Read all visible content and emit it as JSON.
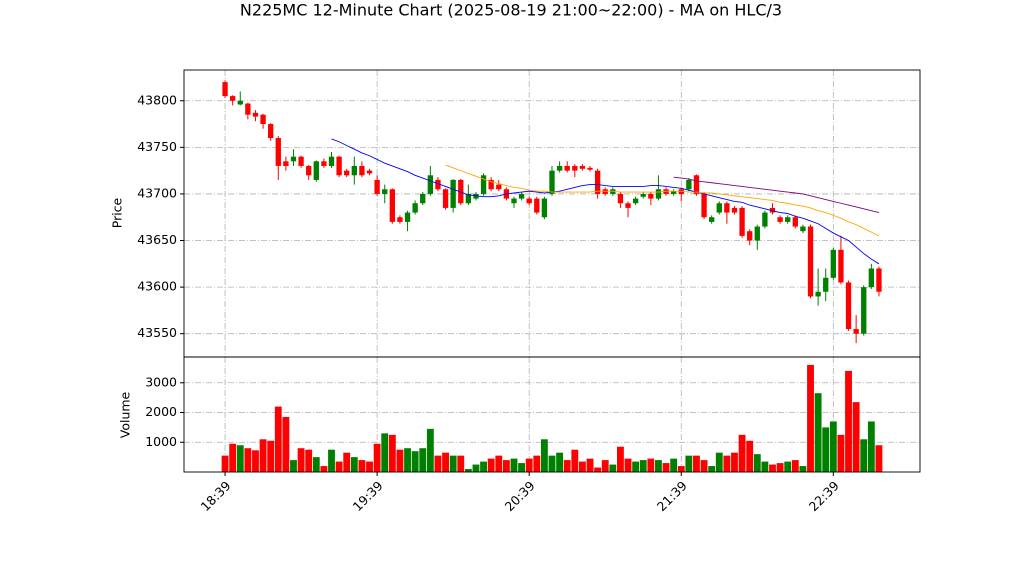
{
  "chart_data": [
    {
      "type": "candlestick",
      "title": "N225MC 12-Minute Chart (2025-08-19 21:00~22:00) - MA on HLC/3",
      "ylabel": "Price",
      "up_color": "#008000",
      "down_color": "#ff0000",
      "open": [
        43820,
        43805,
        43796,
        43797,
        43787,
        43785,
        43775,
        43760,
        43735,
        43735,
        43740,
        43730,
        43715,
        43735,
        43730,
        43740,
        43725,
        43720,
        43730,
        43725,
        43715,
        43700,
        43705,
        43675,
        43670,
        43680,
        43690,
        43700,
        43715,
        43705,
        43685,
        43715,
        43690,
        43695,
        43700,
        43715,
        43710,
        43705,
        43690,
        43695,
        43695,
        43695,
        43675,
        43700,
        43725,
        43730,
        43730,
        43730,
        43728,
        43725,
        43705,
        43700,
        43700,
        43690,
        43690,
        43697,
        43700,
        43695,
        43705,
        43700,
        43705,
        43705,
        43720,
        43700,
        43670,
        43680,
        43690,
        43685,
        43685,
        43660,
        43650,
        43665,
        43685,
        43675,
        43670,
        43675,
        43660,
        43665,
        43590,
        43595,
        43610,
        43640,
        43605,
        43555,
        43550,
        43600,
        43620
      ],
      "high": [
        43822,
        43806,
        43810,
        43798,
        43790,
        43786,
        43776,
        43762,
        43740,
        43748,
        43741,
        43731,
        43736,
        43738,
        43745,
        43741,
        43727,
        43740,
        43735,
        43727,
        43720,
        43710,
        43706,
        43677,
        43682,
        43693,
        43702,
        43730,
        43718,
        43706,
        43716,
        43716,
        43710,
        43702,
        43722,
        43718,
        43715,
        43707,
        43697,
        43702,
        43697,
        43697,
        43697,
        43730,
        43735,
        43735,
        43732,
        43732,
        43730,
        43727,
        43707,
        43707,
        43702,
        43692,
        43697,
        43702,
        43702,
        43720,
        43707,
        43705,
        43707,
        43717,
        43721,
        43702,
        43677,
        43692,
        43692,
        43687,
        43687,
        43662,
        43667,
        43682,
        43690,
        43677,
        43677,
        43677,
        43667,
        43667,
        43620,
        43620,
        43642,
        43655,
        43607,
        43570,
        43602,
        43625,
        43622
      ],
      "low": [
        43803,
        43795,
        43795,
        43780,
        43778,
        43770,
        43757,
        43715,
        43725,
        43730,
        43728,
        43715,
        43713,
        43728,
        43728,
        43718,
        43718,
        43710,
        43718,
        43720,
        43698,
        43690,
        43668,
        43668,
        43660,
        43678,
        43688,
        43698,
        43703,
        43683,
        43680,
        43688,
        43688,
        43693,
        43698,
        43703,
        43703,
        43693,
        43685,
        43693,
        43688,
        43678,
        43673,
        43698,
        43723,
        43723,
        43718,
        43725,
        43724,
        43695,
        43698,
        43698,
        43685,
        43675,
        43688,
        43695,
        43688,
        43693,
        43698,
        43698,
        43692,
        43703,
        43698,
        43673,
        43668,
        43678,
        43668,
        43678,
        43653,
        43645,
        43640,
        43663,
        43678,
        43668,
        43668,
        43663,
        43658,
        43588,
        43580,
        43585,
        43608,
        43603,
        43553,
        43540,
        43548,
        43598,
        43590
      ],
      "close": [
        43805,
        43800,
        43800,
        43785,
        43783,
        43775,
        43760,
        43730,
        43730,
        43740,
        43730,
        43720,
        43735,
        43730,
        43740,
        43720,
        43720,
        43730,
        43720,
        43722,
        43700,
        43705,
        43670,
        43670,
        43680,
        43690,
        43700,
        43720,
        43705,
        43685,
        43715,
        43690,
        43700,
        43700,
        43720,
        43705,
        43705,
        43695,
        43695,
        43700,
        43690,
        43680,
        43695,
        43725,
        43730,
        43725,
        43725,
        43727,
        43726,
        43700,
        43700,
        43705,
        43690,
        43685,
        43695,
        43700,
        43695,
        43705,
        43700,
        43703,
        43700,
        43715,
        43700,
        43675,
        43675,
        43690,
        43680,
        43680,
        43655,
        43650,
        43665,
        43680,
        43680,
        43670,
        43675,
        43665,
        43665,
        43590,
        43595,
        43610,
        43640,
        43605,
        43555,
        43550,
        43600,
        43620,
        43595
      ],
      "series": [
        {
          "color": "#0000ff",
          "values": [
            null,
            null,
            null,
            null,
            null,
            null,
            null,
            null,
            null,
            null,
            null,
            null,
            null,
            null,
            43759,
            43756,
            43752,
            43748,
            43744,
            43741,
            43737,
            43733,
            43730,
            43727,
            43724,
            43720,
            43717,
            43714,
            43711,
            43708,
            43705,
            43702,
            43699,
            43698,
            43697,
            43697,
            43698,
            43700,
            43701,
            43702,
            43703,
            43702,
            43701,
            43702,
            43703,
            43705,
            43707,
            43709,
            43710,
            43710,
            43709,
            43708,
            43708,
            43708,
            43708,
            43708,
            43709,
            43709,
            43708,
            43707,
            43706,
            43704,
            43702,
            43700,
            43698,
            43696,
            43694,
            43692,
            43691,
            43688,
            43686,
            43684,
            43682,
            43680,
            43679,
            43676,
            43674,
            43671,
            43668,
            43663,
            43658,
            43654,
            43650,
            43643,
            43636,
            43630,
            43625
          ]
        },
        {
          "color": "#ffa500",
          "values": [
            null,
            null,
            null,
            null,
            null,
            null,
            null,
            null,
            null,
            null,
            null,
            null,
            null,
            null,
            null,
            null,
            null,
            null,
            null,
            null,
            null,
            null,
            null,
            null,
            null,
            null,
            null,
            null,
            null,
            43731,
            43728,
            43725,
            43722,
            43719,
            43716,
            43713,
            43711,
            43709,
            43707,
            43706,
            43704,
            43703,
            43703,
            43702,
            43702,
            43702,
            43702,
            43702,
            43702,
            43703,
            43703,
            43703,
            43702,
            43702,
            43702,
            43702,
            43702,
            43702,
            43703,
            43703,
            43703,
            43702,
            43702,
            43701,
            43701,
            43700,
            43699,
            43698,
            43697,
            43696,
            43695,
            43694,
            43693,
            43691,
            43690,
            43688,
            43687,
            43685,
            43682,
            43680,
            43677,
            43674,
            43670,
            43667,
            43663,
            43659,
            43655
          ]
        },
        {
          "color": "#800080",
          "values": [
            null,
            null,
            null,
            null,
            null,
            null,
            null,
            null,
            null,
            null,
            null,
            null,
            null,
            null,
            null,
            null,
            null,
            null,
            null,
            null,
            null,
            null,
            null,
            null,
            null,
            null,
            null,
            null,
            null,
            null,
            null,
            null,
            null,
            null,
            null,
            null,
            null,
            null,
            null,
            null,
            null,
            null,
            null,
            null,
            null,
            null,
            null,
            null,
            null,
            null,
            null,
            null,
            null,
            null,
            null,
            null,
            null,
            null,
            null,
            43718,
            43717,
            43716,
            43714,
            43713,
            43712,
            43711,
            43710,
            43709,
            43708,
            43707,
            43706,
            43705,
            43704,
            43703,
            43702,
            43701,
            43700,
            43698,
            43696,
            43694,
            43692,
            43690,
            43688,
            43686,
            43684,
            43682,
            43680
          ]
        }
      ],
      "xlim": [
        -5.4,
        91.4
      ],
      "ylim": [
        43525,
        43833
      ],
      "yticks": [
        43550,
        43600,
        43650,
        43700,
        43750,
        43800
      ],
      "grid": true
    },
    {
      "type": "bar",
      "ylabel": "Volume",
      "values": [
        550,
        950,
        900,
        800,
        730,
        1100,
        1050,
        2200,
        1850,
        400,
        800,
        750,
        500,
        200,
        750,
        350,
        650,
        500,
        400,
        350,
        950,
        1300,
        1250,
        750,
        800,
        700,
        800,
        1450,
        550,
        650,
        550,
        550,
        100,
        250,
        350,
        450,
        550,
        400,
        450,
        300,
        450,
        550,
        1100,
        550,
        650,
        400,
        750,
        350,
        450,
        150,
        400,
        250,
        850,
        450,
        350,
        400,
        450,
        400,
        300,
        450,
        200,
        550,
        550,
        400,
        200,
        650,
        550,
        650,
        1250,
        1050,
        600,
        350,
        250,
        300,
        350,
        400,
        200,
        3600,
        2650,
        1500,
        1700,
        1250,
        3400,
        2350,
        1100,
        1700,
        900
      ],
      "xlim": [
        -5.4,
        91.4
      ],
      "xticks": [
        {
          "value": 0,
          "label": "18:39"
        },
        {
          "value": 20,
          "label": "19:39"
        },
        {
          "value": 40,
          "label": "20:39"
        },
        {
          "value": 60,
          "label": "21:39"
        },
        {
          "value": 80,
          "label": "22:39"
        }
      ],
      "ylim": [
        0,
        3867
      ],
      "yticks": [
        1000,
        2000,
        3000
      ],
      "grid": true
    }
  ]
}
